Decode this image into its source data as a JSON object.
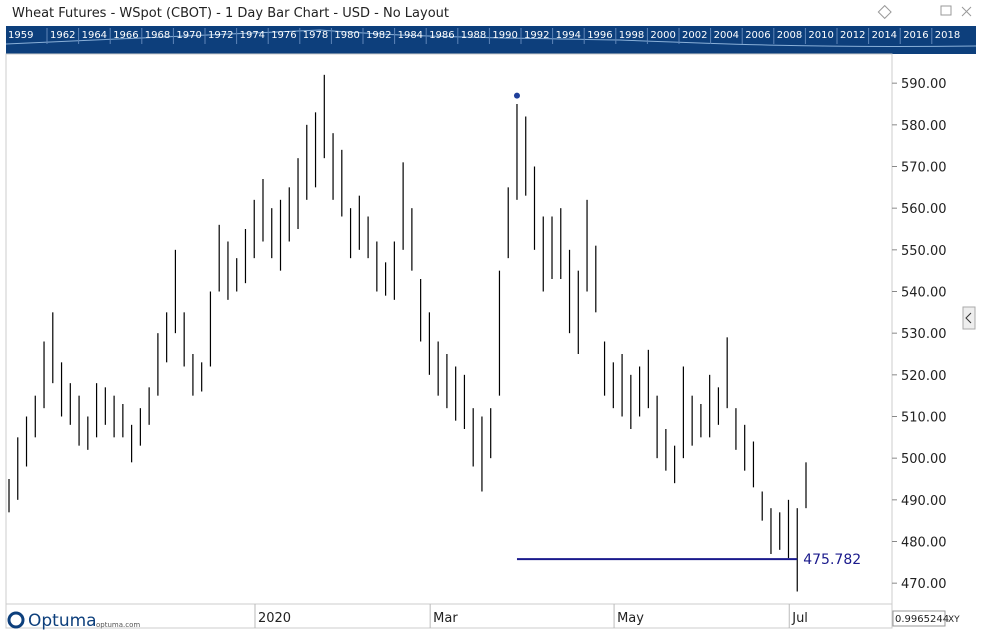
{
  "chart_data": {
    "type": "ohlc",
    "title": "Wheat Futures - WSpot (CBOT) - 1 Day Bar Chart - USD - No Layout",
    "overview_years": [
      "1959",
      "1962",
      "1964",
      "1966",
      "1968",
      "1970",
      "1972",
      "1974",
      "1976",
      "1978",
      "1980",
      "1982",
      "1984",
      "1986",
      "1988",
      "1990",
      "1992",
      "1994",
      "1996",
      "1998",
      "2000",
      "2002",
      "2004",
      "2006",
      "2008",
      "2010",
      "2012",
      "2014",
      "2016",
      "2018"
    ],
    "categories": [
      null,
      null,
      null,
      null,
      null,
      null,
      null,
      null,
      null,
      null,
      null,
      null,
      null,
      null,
      null,
      null,
      null,
      null,
      null,
      null,
      null,
      null,
      null,
      null,
      null,
      null,
      null,
      null,
      null,
      "2020",
      null,
      null,
      null,
      null,
      null,
      null,
      null,
      null,
      null,
      null,
      null,
      null,
      null,
      null,
      null,
      null,
      null,
      null,
      null,
      "Mar",
      null,
      null,
      null,
      null,
      null,
      null,
      null,
      null,
      null,
      null,
      null,
      null,
      null,
      null,
      null,
      null,
      null,
      null,
      null,
      null,
      "May",
      null,
      null,
      null,
      null,
      null,
      null,
      null,
      null,
      null,
      null,
      null,
      null,
      null,
      null,
      null,
      null,
      null,
      null,
      null,
      "Jul",
      null
    ],
    "series": [
      {
        "name": "High",
        "color": "#000000",
        "values": [
          495,
          505,
          510,
          515,
          528,
          535,
          523,
          518,
          515,
          510,
          518,
          517,
          515,
          513,
          508,
          512,
          517,
          530,
          535,
          550,
          535,
          525,
          523,
          540,
          556,
          552,
          548,
          555,
          562,
          567,
          560,
          562,
          565,
          572,
          580,
          583,
          592,
          578,
          574,
          560,
          563,
          558,
          552,
          547,
          552,
          571,
          560,
          543,
          535,
          528,
          525,
          522,
          520,
          512,
          510,
          512,
          545,
          565,
          585,
          582,
          570,
          558,
          558,
          560,
          550,
          545,
          562,
          551,
          528,
          523,
          525,
          520,
          522,
          526,
          515,
          507,
          503,
          522,
          515,
          513,
          520,
          517,
          529,
          512,
          508,
          504,
          492,
          488,
          487,
          490,
          488,
          499
        ]
      },
      {
        "name": "Low",
        "color": "#000000",
        "values": [
          487,
          490,
          498,
          505,
          512,
          518,
          510,
          508,
          503,
          502,
          505,
          508,
          505,
          505,
          499,
          503,
          508,
          515,
          523,
          530,
          522,
          515,
          516,
          522,
          540,
          538,
          540,
          542,
          548,
          552,
          548,
          545,
          552,
          555,
          562,
          565,
          572,
          562,
          558,
          548,
          550,
          548,
          540,
          539,
          538,
          550,
          545,
          528,
          520,
          515,
          512,
          509,
          507,
          498,
          492,
          500,
          515,
          548,
          562,
          563,
          550,
          540,
          543,
          543,
          530,
          525,
          540,
          535,
          515,
          512,
          510,
          507,
          510,
          512,
          500,
          497,
          494,
          500,
          503,
          505,
          505,
          508,
          512,
          502,
          497,
          493,
          485,
          477,
          478,
          476,
          468,
          488
        ]
      }
    ],
    "marker": {
      "index": 58,
      "value": 587,
      "color": "#1f3f9a"
    },
    "annotation": {
      "value": 475.782,
      "start": 58,
      "end": 90,
      "color": "#1a1a8c"
    },
    "ylim": [
      465,
      597
    ],
    "yticks": [
      {
        "value": 470,
        "label": "470.00"
      },
      {
        "value": 480,
        "label": "480.00"
      },
      {
        "value": 490,
        "label": "490.00"
      },
      {
        "value": 500,
        "label": "500.00"
      },
      {
        "value": 510,
        "label": "510.00"
      },
      {
        "value": 520,
        "label": "520.00"
      },
      {
        "value": 530,
        "label": "530.00"
      },
      {
        "value": 540,
        "label": "540.00"
      },
      {
        "value": 550,
        "label": "550.00"
      },
      {
        "value": 560,
        "label": "560.00"
      },
      {
        "value": 570,
        "label": "570.00"
      },
      {
        "value": 580,
        "label": "580.00"
      },
      {
        "value": 590,
        "label": "590.00"
      }
    ],
    "logo": "Optuma",
    "logo_url": "optuma.com",
    "scale_box": "0.9965244",
    "scale_mode": "XY"
  }
}
